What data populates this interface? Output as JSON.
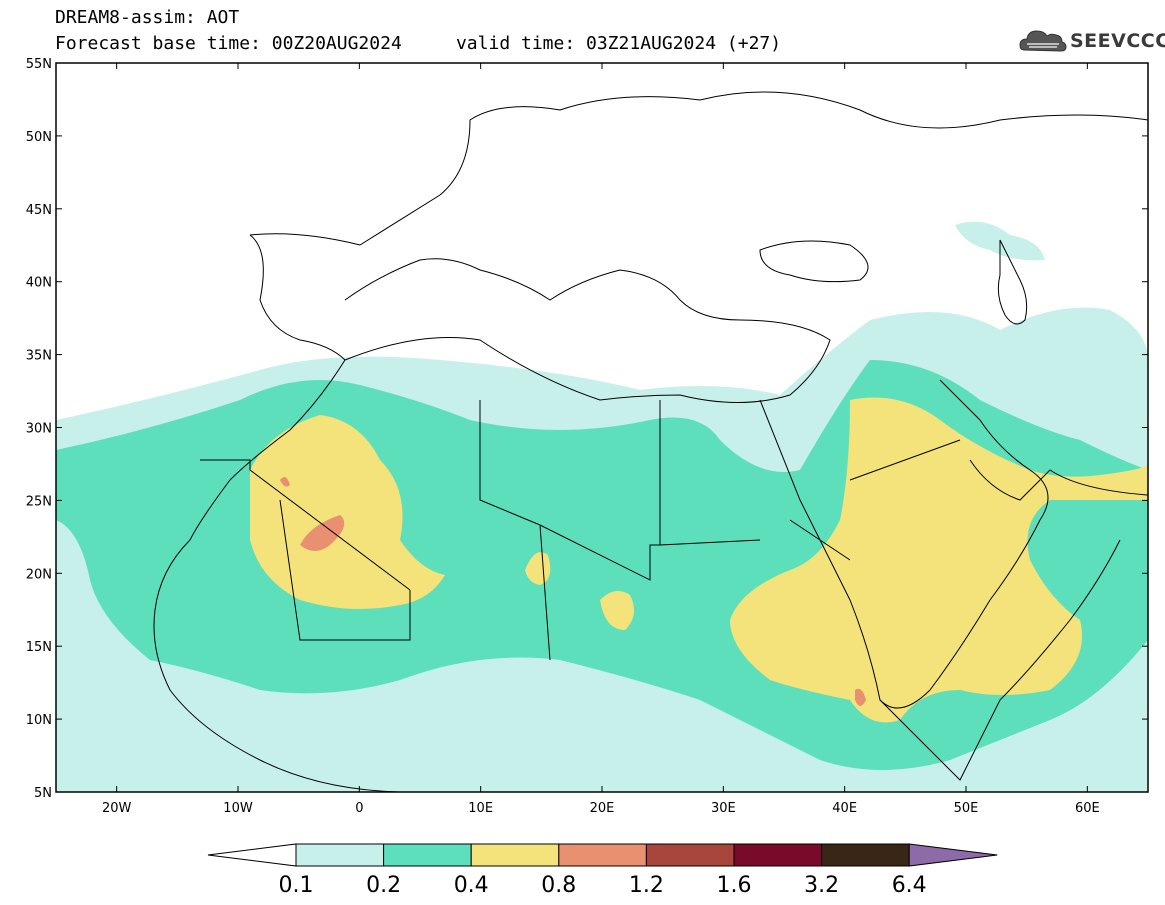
{
  "title": {
    "line1": "DREAM8-assim: AOT",
    "line2": "Forecast base time: 00Z20AUG2024     valid time: 03Z21AUG2024 (+27)"
  },
  "logo": {
    "text": "SEEVCCC",
    "icon": "cloud-icon"
  },
  "map": {
    "variable": "AOT",
    "lat_labels": [
      "55N",
      "50N",
      "45N",
      "40N",
      "35N",
      "30N",
      "25N",
      "20N",
      "15N",
      "10N",
      "5N"
    ],
    "lon_labels": [
      "20W",
      "10W",
      "0",
      "10E",
      "20E",
      "30E",
      "40E",
      "50E",
      "60E"
    ],
    "lat_values": [
      55,
      50,
      45,
      40,
      35,
      30,
      25,
      20,
      15,
      10,
      5
    ],
    "lon_values": [
      -20,
      -10,
      0,
      10,
      20,
      30,
      40,
      50,
      60
    ],
    "lon_range": [
      -25,
      65
    ],
    "lat_range": [
      5,
      55
    ]
  },
  "colorbar": {
    "labels": [
      "0.1",
      "0.2",
      "0.4",
      "0.8",
      "1.2",
      "1.6",
      "3.2",
      "6.4"
    ],
    "colors": [
      "#ffffff",
      "#c7f0ea",
      "#5ddfbb",
      "#f4e27a",
      "#e89070",
      "#a8463c",
      "#7a0a2a",
      "#3a2616",
      "#8e6aa8"
    ]
  }
}
